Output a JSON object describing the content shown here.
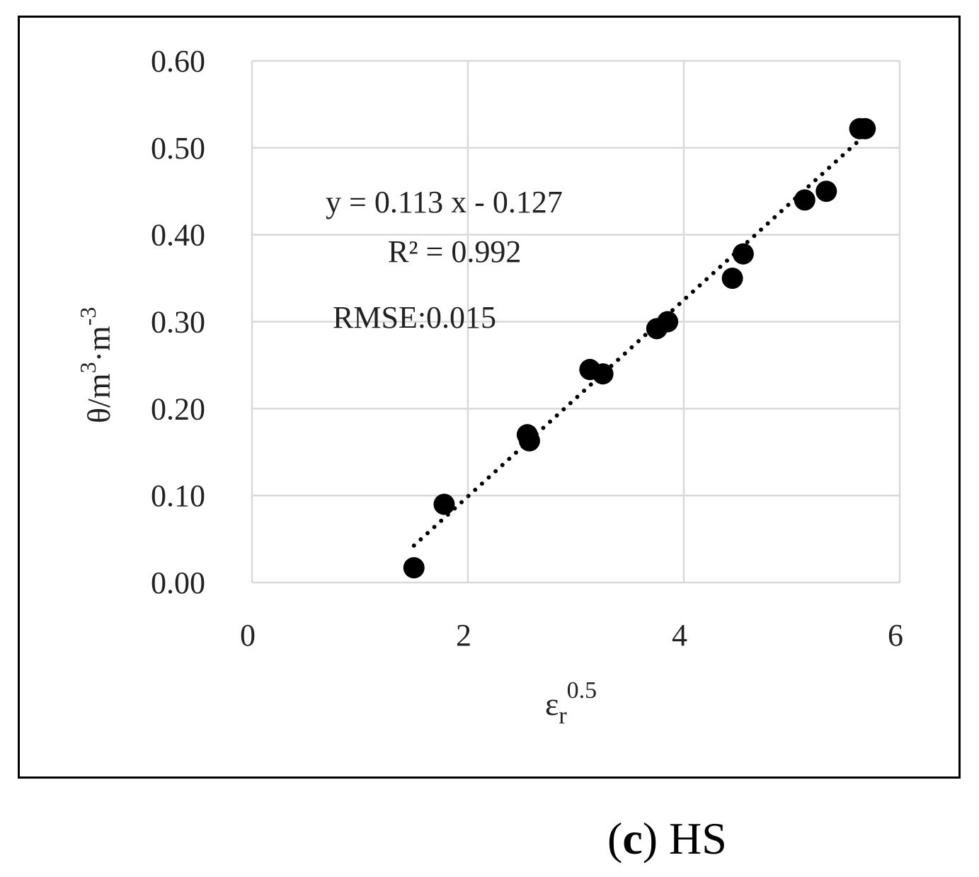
{
  "chart_data": {
    "type": "scatter",
    "x": [
      1.5,
      1.78,
      2.55,
      2.57,
      3.13,
      3.25,
      3.75,
      3.85,
      4.45,
      4.55,
      5.12,
      5.32,
      5.63,
      5.68
    ],
    "y": [
      0.017,
      0.09,
      0.17,
      0.163,
      0.245,
      0.24,
      0.292,
      0.3,
      0.35,
      0.378,
      0.44,
      0.45,
      0.522,
      0.522
    ],
    "trendline": {
      "slope": 0.113,
      "intercept": -0.127,
      "x_range": [
        1.5,
        5.68
      ],
      "style": "dotted"
    },
    "xlim": [
      0,
      6
    ],
    "ylim": [
      0,
      0.6
    ],
    "xticks": [
      "0",
      "2",
      "4",
      "6"
    ],
    "yticks": [
      "0.00",
      "0.10",
      "0.20",
      "0.30",
      "0.40",
      "0.50",
      "0.60"
    ],
    "grid": true,
    "xlabel": {
      "main": "ε",
      "sub": "r",
      "sup": "0.5"
    },
    "ylabel": {
      "main": "θ/m",
      "sup1": "3",
      "mid": "·m",
      "sup2": "-3"
    },
    "annotations": {
      "equation": "y = 0.113 x - 0.127",
      "r2": "R² = 0.992",
      "rmse": "RMSE:0.015"
    },
    "marker_color": "#000000",
    "grid_color": "#d9d9d9"
  },
  "caption": {
    "letter_open": "(",
    "letter": "c",
    "letter_close": ")",
    "text": " HS"
  }
}
